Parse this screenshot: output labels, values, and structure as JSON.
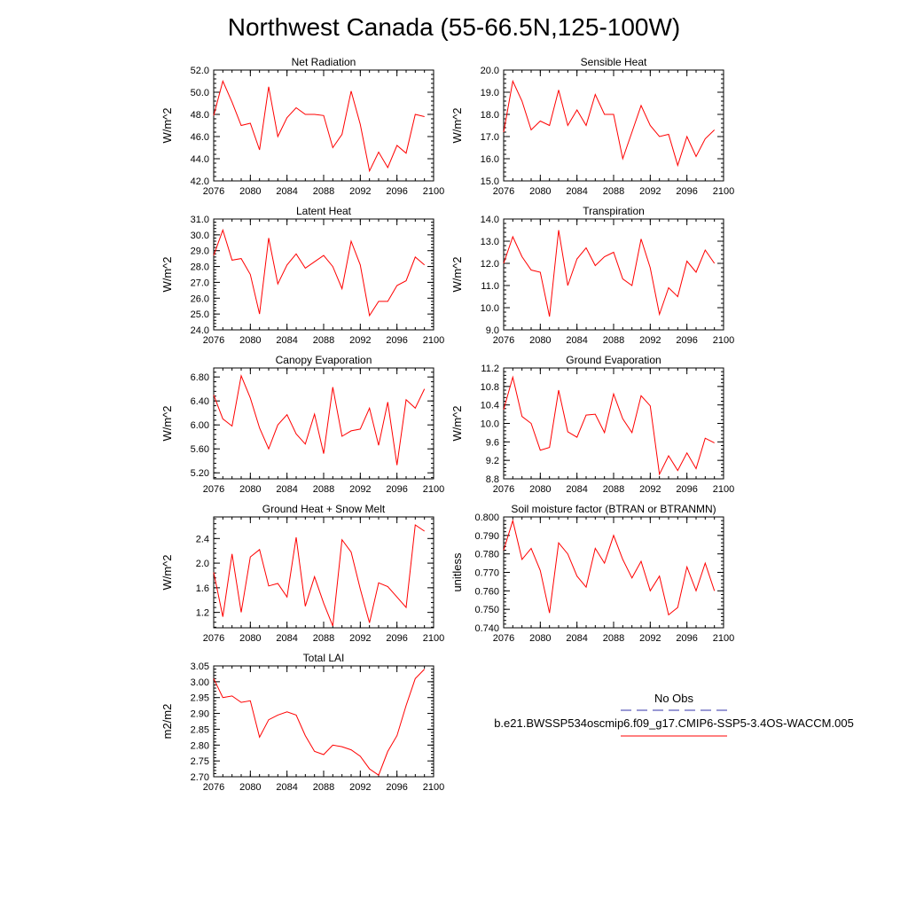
{
  "page_title": "Northwest Canada (55-66.5N,125-100W)",
  "legend": {
    "entries": [
      {
        "label": "No Obs",
        "color": "#3333aa",
        "style": "dashed"
      },
      {
        "label": "b.e21.BWSSP534oscmip6.f09_g17.CMIP6-SSP5-3.4OS-WACCM.005",
        "color": "#ff0000",
        "style": "solid"
      }
    ]
  },
  "chart_data": [
    {
      "type": "line",
      "title": "Net Radiation",
      "ylabel": "W/m^2",
      "ylim": [
        42,
        52
      ],
      "yticks": [
        "42.0",
        "44.0",
        "46.0",
        "48.0",
        "50.0",
        "52.0"
      ],
      "xlim": [
        2076,
        2100
      ],
      "xticks": [
        "2076",
        "2080",
        "2084",
        "2088",
        "2092",
        "2096",
        "2100"
      ],
      "series": [
        {
          "color": "#ff0000",
          "x": [
            2076,
            2077,
            2078,
            2079,
            2080,
            2081,
            2082,
            2083,
            2084,
            2085,
            2086,
            2087,
            2088,
            2089,
            2090,
            2091,
            2092,
            2093,
            2094,
            2095,
            2096,
            2097,
            2098,
            2099
          ],
          "values": [
            47.9,
            51.0,
            49.1,
            47.0,
            47.2,
            44.8,
            50.5,
            46.0,
            47.7,
            48.6,
            48.0,
            48.0,
            47.9,
            45.0,
            46.2,
            50.1,
            47.1,
            42.9,
            44.6,
            43.2,
            45.2,
            44.5,
            48.0,
            47.8
          ]
        }
      ]
    },
    {
      "type": "line",
      "title": "Sensible Heat",
      "ylabel": "W/m^2",
      "ylim": [
        15,
        20
      ],
      "yticks": [
        "15.0",
        "16.0",
        "17.0",
        "18.0",
        "19.0",
        "20.0"
      ],
      "xlim": [
        2076,
        2100
      ],
      "xticks": [
        "2076",
        "2080",
        "2084",
        "2088",
        "2092",
        "2096",
        "2100"
      ],
      "series": [
        {
          "color": "#ff0000",
          "x": [
            2076,
            2077,
            2078,
            2079,
            2080,
            2081,
            2082,
            2083,
            2084,
            2085,
            2086,
            2087,
            2088,
            2089,
            2090,
            2091,
            2092,
            2093,
            2094,
            2095,
            2096,
            2097,
            2098,
            2099
          ],
          "values": [
            17.2,
            19.5,
            18.6,
            17.3,
            17.7,
            17.5,
            19.1,
            17.5,
            18.2,
            17.5,
            18.9,
            18.0,
            18.0,
            16.0,
            17.2,
            18.4,
            17.5,
            17.0,
            17.1,
            15.7,
            17.0,
            16.1,
            16.9,
            17.3
          ]
        }
      ]
    },
    {
      "type": "line",
      "title": "Latent Heat",
      "ylabel": "W/m^2",
      "ylim": [
        24,
        31
      ],
      "yticks": [
        "24.0",
        "25.0",
        "26.0",
        "27.0",
        "28.0",
        "29.0",
        "30.0",
        "31.0"
      ],
      "xlim": [
        2076,
        2100
      ],
      "xticks": [
        "2076",
        "2080",
        "2084",
        "2088",
        "2092",
        "2096",
        "2100"
      ],
      "series": [
        {
          "color": "#ff0000",
          "x": [
            2076,
            2077,
            2078,
            2079,
            2080,
            2081,
            2082,
            2083,
            2084,
            2085,
            2086,
            2087,
            2088,
            2089,
            2090,
            2091,
            2092,
            2093,
            2094,
            2095,
            2096,
            2097,
            2098,
            2099
          ],
          "values": [
            28.7,
            30.3,
            28.4,
            28.5,
            27.5,
            25.0,
            29.8,
            26.9,
            28.1,
            28.8,
            27.9,
            28.3,
            28.7,
            28.0,
            26.6,
            29.6,
            28.1,
            24.9,
            25.8,
            25.8,
            26.8,
            27.1,
            28.6,
            28.1
          ]
        }
      ]
    },
    {
      "type": "line",
      "title": "Transpiration",
      "ylabel": "W/m^2",
      "ylim": [
        9,
        14
      ],
      "yticks": [
        "9.0",
        "10.0",
        "11.0",
        "12.0",
        "13.0",
        "14.0"
      ],
      "xlim": [
        2076,
        2100
      ],
      "xticks": [
        "2076",
        "2080",
        "2084",
        "2088",
        "2092",
        "2096",
        "2100"
      ],
      "series": [
        {
          "color": "#ff0000",
          "x": [
            2076,
            2077,
            2078,
            2079,
            2080,
            2081,
            2082,
            2083,
            2084,
            2085,
            2086,
            2087,
            2088,
            2089,
            2090,
            2091,
            2092,
            2093,
            2094,
            2095,
            2096,
            2097,
            2098,
            2099
          ],
          "values": [
            12.0,
            13.2,
            12.3,
            11.7,
            11.6,
            9.6,
            13.5,
            11.0,
            12.2,
            12.7,
            11.9,
            12.3,
            12.5,
            11.3,
            11.0,
            13.1,
            11.8,
            9.7,
            10.9,
            10.5,
            12.1,
            11.6,
            12.6,
            12.0
          ]
        }
      ]
    },
    {
      "type": "line",
      "title": "Canopy Evaporation",
      "ylabel": "W/m^2",
      "ylim": [
        5.1,
        6.95
      ],
      "yticks": [
        "5.20",
        "5.60",
        "6.00",
        "6.40",
        "6.80"
      ],
      "xlim": [
        2076,
        2100
      ],
      "xticks": [
        "2076",
        "2080",
        "2084",
        "2088",
        "2092",
        "2096",
        "2100"
      ],
      "series": [
        {
          "color": "#ff0000",
          "x": [
            2076,
            2077,
            2078,
            2079,
            2080,
            2081,
            2082,
            2083,
            2084,
            2085,
            2086,
            2087,
            2088,
            2089,
            2090,
            2091,
            2092,
            2093,
            2094,
            2095,
            2096,
            2097,
            2098,
            2099
          ],
          "values": [
            6.5,
            6.1,
            5.98,
            6.82,
            6.45,
            5.95,
            5.6,
            6.0,
            6.17,
            5.85,
            5.68,
            6.18,
            5.52,
            6.63,
            5.81,
            5.9,
            5.93,
            6.28,
            5.66,
            6.38,
            5.33,
            6.42,
            6.28,
            6.6
          ]
        }
      ]
    },
    {
      "type": "line",
      "title": "Ground Evaporation",
      "ylabel": "W/m^2",
      "ylim": [
        8.8,
        11.2
      ],
      "yticks": [
        "8.8",
        "9.2",
        "9.6",
        "10.0",
        "10.4",
        "10.8",
        "11.2"
      ],
      "xlim": [
        2076,
        2100
      ],
      "xticks": [
        "2076",
        "2080",
        "2084",
        "2088",
        "2092",
        "2096",
        "2100"
      ],
      "series": [
        {
          "color": "#ff0000",
          "x": [
            2076,
            2077,
            2078,
            2079,
            2080,
            2081,
            2082,
            2083,
            2084,
            2085,
            2086,
            2087,
            2088,
            2089,
            2090,
            2091,
            2092,
            2093,
            2094,
            2095,
            2096,
            2097,
            2098,
            2099
          ],
          "values": [
            10.3,
            11.0,
            10.15,
            10.0,
            9.42,
            9.48,
            10.72,
            9.82,
            9.7,
            10.18,
            10.2,
            9.8,
            10.64,
            10.1,
            9.8,
            10.6,
            10.38,
            8.9,
            9.3,
            8.98,
            9.36,
            9.02,
            9.68,
            9.58
          ]
        }
      ]
    },
    {
      "type": "line",
      "title": "Ground Heat + Snow Melt",
      "ylabel": "W/m^2",
      "ylim": [
        0.95,
        2.75
      ],
      "yticks": [
        "1.2",
        "1.6",
        "2.0",
        "2.4"
      ],
      "xlim": [
        2076,
        2100
      ],
      "xticks": [
        "2076",
        "2080",
        "2084",
        "2088",
        "2092",
        "2096",
        "2100"
      ],
      "series": [
        {
          "color": "#ff0000",
          "x": [
            2076,
            2077,
            2078,
            2079,
            2080,
            2081,
            2082,
            2083,
            2084,
            2085,
            2086,
            2087,
            2088,
            2089,
            2090,
            2091,
            2092,
            2093,
            2094,
            2095,
            2096,
            2097,
            2098,
            2099
          ],
          "values": [
            1.85,
            1.13,
            2.15,
            1.2,
            2.1,
            2.22,
            1.63,
            1.67,
            1.45,
            2.42,
            1.3,
            1.78,
            1.35,
            0.98,
            2.38,
            2.18,
            1.58,
            1.03,
            1.68,
            1.62,
            1.45,
            1.28,
            2.62,
            2.52
          ]
        }
      ]
    },
    {
      "type": "line",
      "title": "Soil moisture factor (BTRAN or BTRANMN)",
      "ylabel": "unitless",
      "ylim": [
        0.74,
        0.8
      ],
      "yticks": [
        "0.740",
        "0.750",
        "0.760",
        "0.770",
        "0.780",
        "0.790",
        "0.800"
      ],
      "xlim": [
        2076,
        2100
      ],
      "xticks": [
        "2076",
        "2080",
        "2084",
        "2088",
        "2092",
        "2096",
        "2100"
      ],
      "series": [
        {
          "color": "#ff0000",
          "x": [
            2076,
            2077,
            2078,
            2079,
            2080,
            2081,
            2082,
            2083,
            2084,
            2085,
            2086,
            2087,
            2088,
            2089,
            2090,
            2091,
            2092,
            2093,
            2094,
            2095,
            2096,
            2097,
            2098,
            2099
          ],
          "values": [
            0.782,
            0.798,
            0.777,
            0.783,
            0.771,
            0.748,
            0.786,
            0.78,
            0.768,
            0.762,
            0.783,
            0.775,
            0.79,
            0.777,
            0.767,
            0.776,
            0.76,
            0.768,
            0.747,
            0.751,
            0.773,
            0.76,
            0.775,
            0.76
          ]
        }
      ]
    },
    {
      "type": "line",
      "title": "Total LAI",
      "ylabel": "m2/m2",
      "ylim": [
        2.7,
        3.05
      ],
      "yticks": [
        "2.70",
        "2.75",
        "2.80",
        "2.85",
        "2.90",
        "2.95",
        "3.00",
        "3.05"
      ],
      "xlim": [
        2076,
        2100
      ],
      "xticks": [
        "2076",
        "2080",
        "2084",
        "2088",
        "2092",
        "2096",
        "2100"
      ],
      "series": [
        {
          "color": "#ff0000",
          "x": [
            2076,
            2077,
            2078,
            2079,
            2080,
            2081,
            2082,
            2083,
            2084,
            2085,
            2086,
            2087,
            2088,
            2089,
            2090,
            2091,
            2092,
            2093,
            2094,
            2095,
            2096,
            2097,
            2098,
            2099
          ],
          "values": [
            3.01,
            2.95,
            2.955,
            2.935,
            2.94,
            2.825,
            2.88,
            2.895,
            2.905,
            2.895,
            2.83,
            2.78,
            2.77,
            2.8,
            2.795,
            2.785,
            2.765,
            2.725,
            2.705,
            2.78,
            2.83,
            2.925,
            3.01,
            3.04
          ]
        }
      ]
    }
  ]
}
